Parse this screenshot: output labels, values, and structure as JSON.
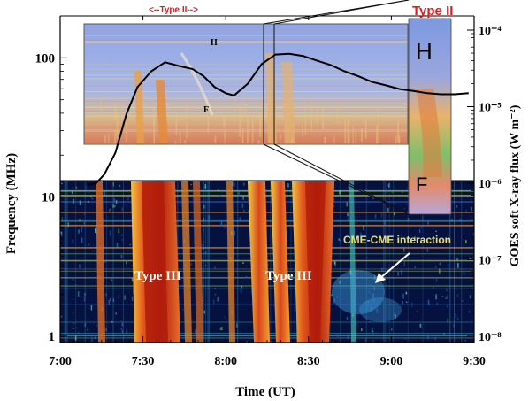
{
  "chart_data": {
    "type": "heatmap",
    "xlabel": "Time (UT)",
    "ylabel_left": "Frequency (MHz)",
    "ylabel_right": "GOES soft X-ray flux (W m⁻²)",
    "x_ticks": [
      "7:00",
      "7:30",
      "8:00",
      "8:30",
      "9:00",
      "9:30"
    ],
    "x_range_minutes": [
      0,
      150
    ],
    "y_left_ticks": [
      "1",
      "10",
      "100"
    ],
    "y_left_range_mhz": [
      0.9,
      200
    ],
    "y_left_scale": "log",
    "y_right_ticks": [
      "10⁻⁸",
      "10⁻⁷",
      "10⁻⁶",
      "10⁻⁵",
      "10⁻⁴"
    ],
    "y_right_range": [
      1e-08,
      0.0001
    ],
    "y_right_scale": "log",
    "annotations": {
      "type3_a": "Type III",
      "type3_b": "Type III",
      "cme": "CME-CME interaction",
      "type2_range": "<--Type II-->",
      "type2_inset": "Type II",
      "harmonic_small": "H",
      "fundamental_small": "F",
      "harmonic_large": "H",
      "fundamental_large": "F"
    },
    "xray_flux": {
      "name": "GOES soft X-ray flux",
      "x_minutes": [
        10,
        13,
        16,
        20,
        24,
        28,
        33,
        38,
        43,
        48,
        52,
        56,
        60,
        63,
        68,
        73,
        78,
        83,
        88,
        93,
        98,
        103,
        108,
        113,
        118,
        123,
        128,
        133,
        138,
        143,
        148
      ],
      "flux": [
        9.5e-07,
        1e-06,
        1.3e-06,
        2.5e-06,
        8e-06,
        1.8e-05,
        2.9e-05,
        3.8e-05,
        3.4e-05,
        3.1e-05,
        2.5e-05,
        1.8e-05,
        1.5e-05,
        1.4e-05,
        2e-05,
        3.6e-05,
        4.8e-05,
        4.9e-05,
        4.6e-05,
        4e-05,
        3.5e-05,
        2.9e-05,
        2.5e-05,
        2.1e-05,
        1.9e-05,
        1.7e-05,
        1.6e-05,
        1.5e-05,
        1.45e-05,
        1.45e-05,
        1.5e-05
      ]
    },
    "colors": {
      "background": "#05123f",
      "type2_label": "#e41a1c",
      "cme_label": "#e8e06a",
      "arrow": "#ffffff",
      "burst_core": "#c0300c",
      "burst_edge": "#f5a623"
    }
  }
}
